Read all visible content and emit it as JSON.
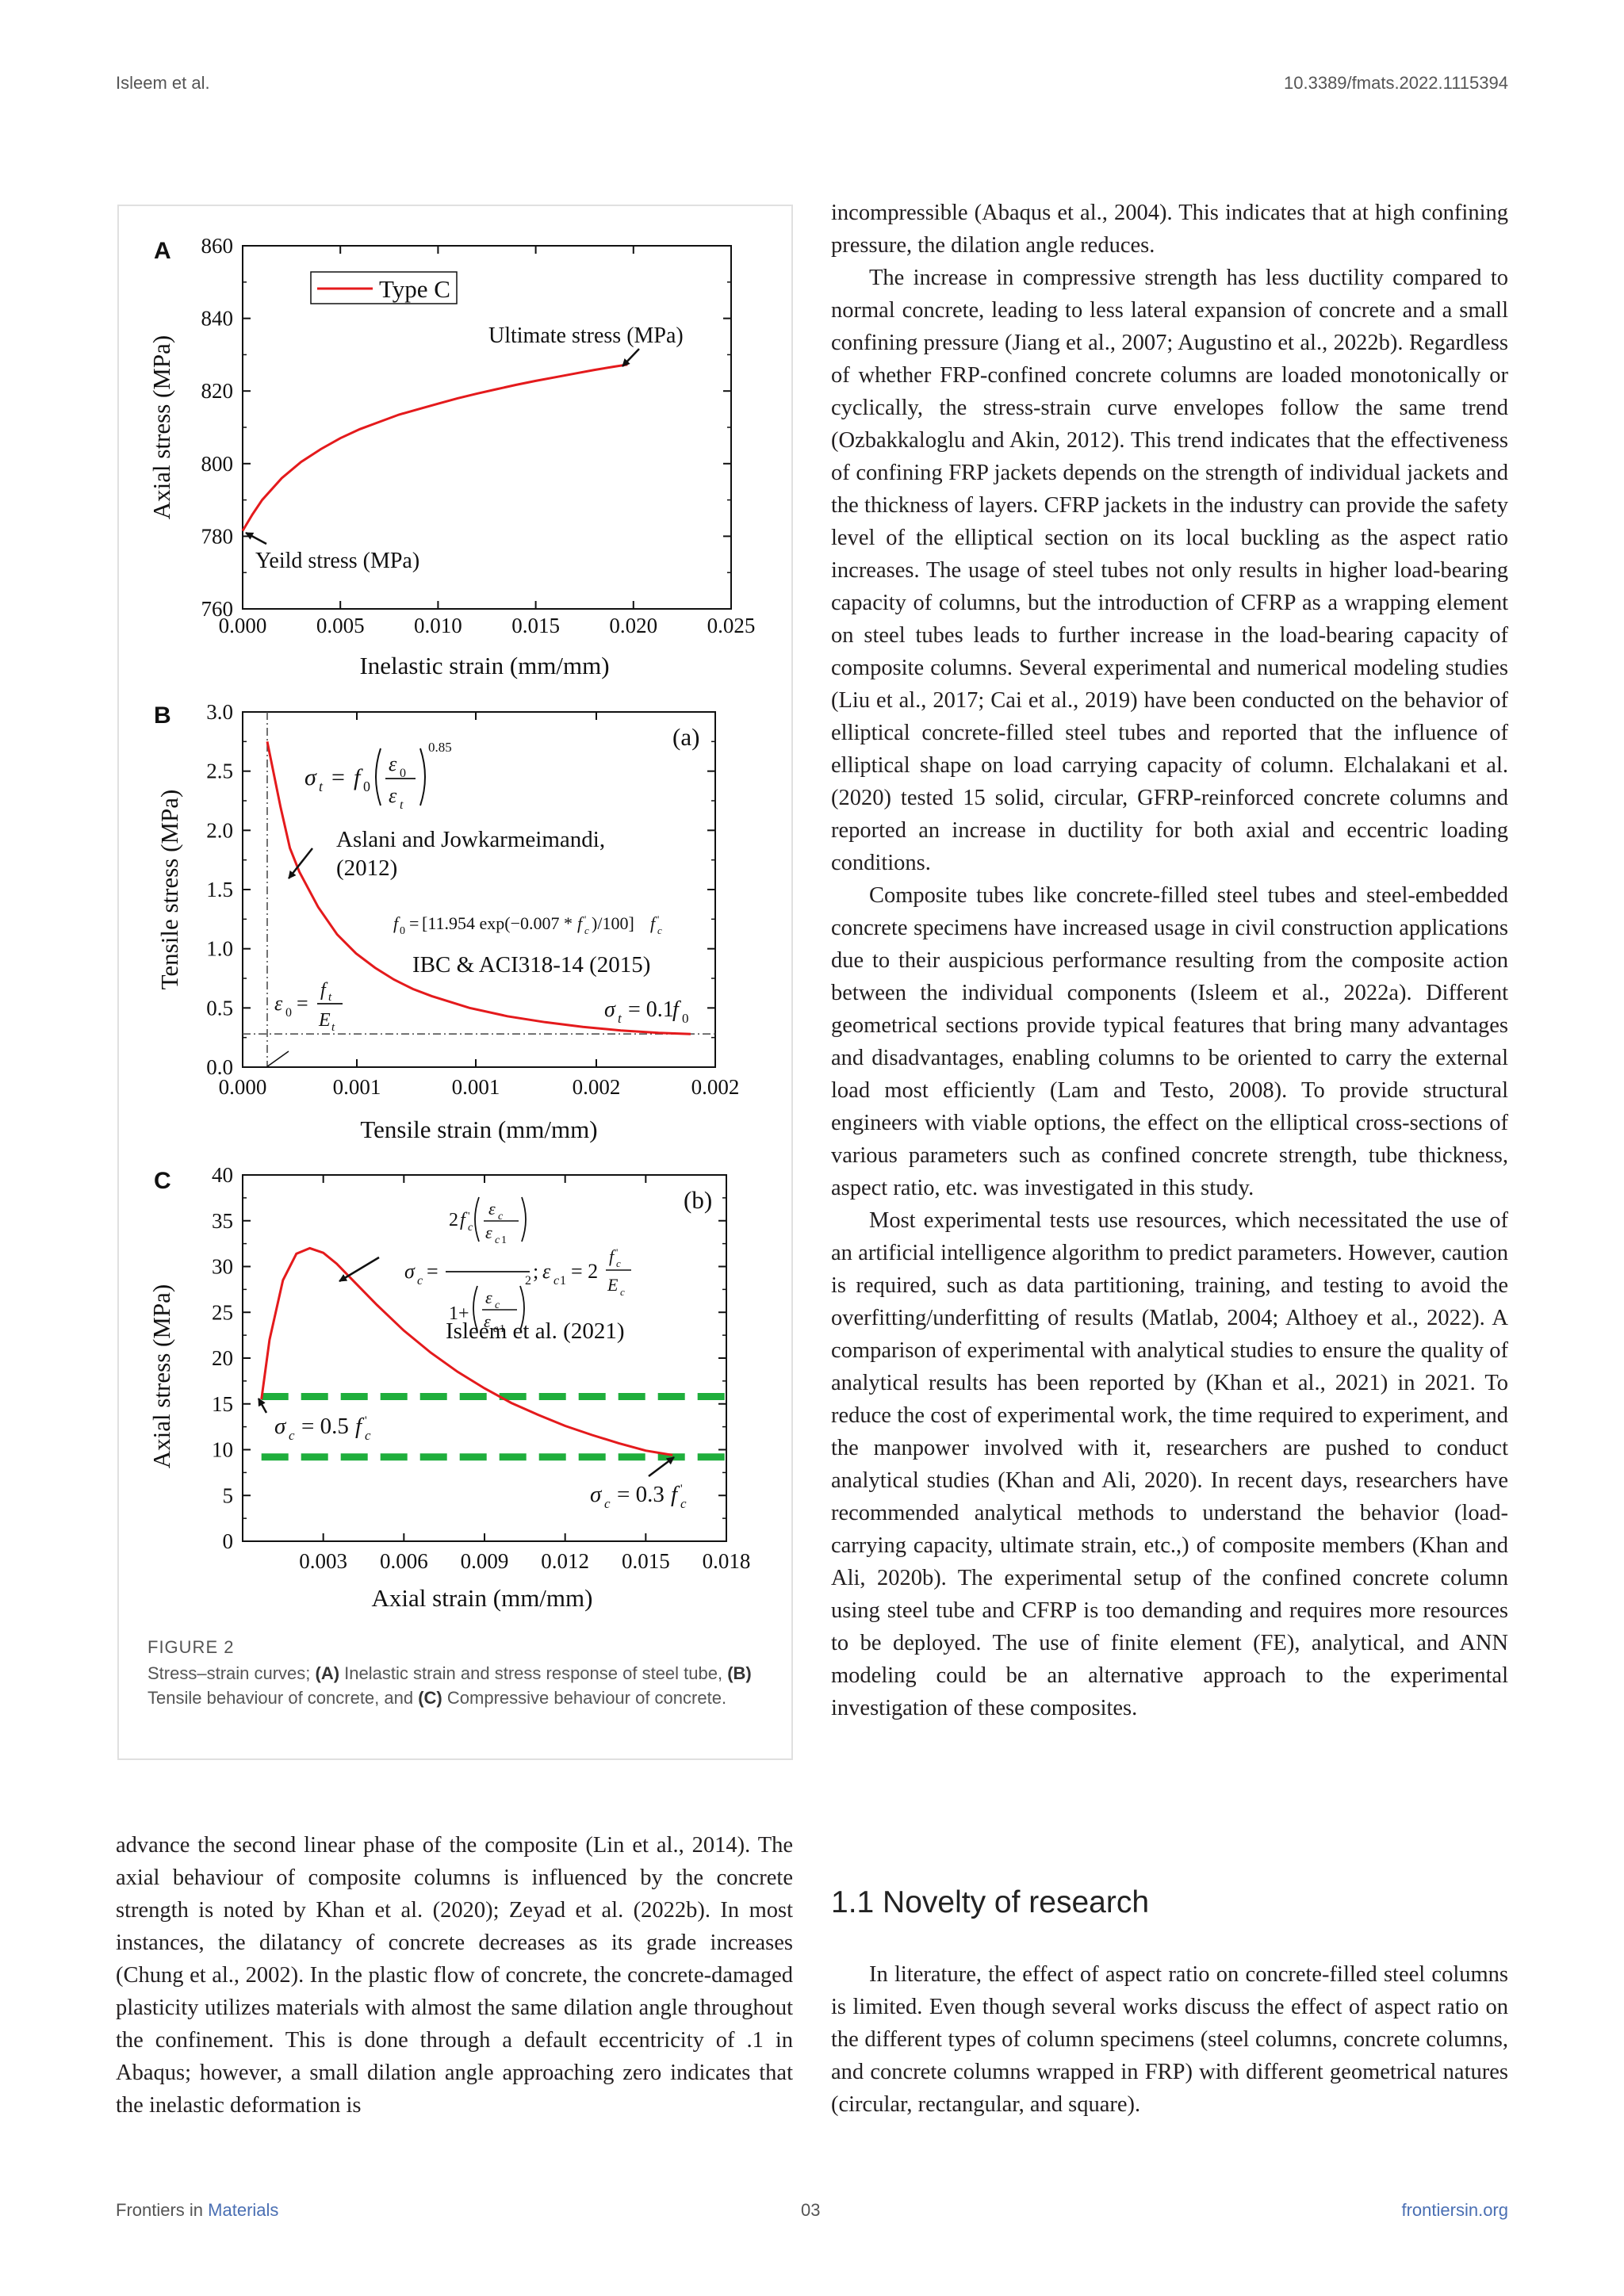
{
  "header": {
    "left": "Isleem et al.",
    "right": "10.3389/fmats.2022.1115394"
  },
  "footer": {
    "journal_prefix": "Frontiers in",
    "journal_name": "Materials",
    "page": "03",
    "site": "frontiersin.org"
  },
  "figure": {
    "label": "FIGURE 2",
    "caption_parts": [
      "Stress–strain curves; ",
      "(A)",
      " Inelastic strain and stress response of steel tube, ",
      "(B)",
      " Tensile behaviour of concrete, and ",
      "(C)",
      " Compressive behaviour of concrete."
    ]
  },
  "chart_data": [
    {
      "type": "line",
      "panel": "A",
      "xlabel": "Inelastic strain (mm/mm)",
      "ylabel": "Axial stress (MPa)",
      "xlim": [
        0.0,
        0.025
      ],
      "ylim": [
        760,
        860
      ],
      "xticks": [
        "0.000",
        "0.005",
        "0.010",
        "0.015",
        "0.020",
        "0.025"
      ],
      "yticks": [
        "760",
        "780",
        "800",
        "820",
        "840",
        "860"
      ],
      "legend": "top-left",
      "series": [
        {
          "name": "Type C",
          "color": "#e41a1c",
          "x": [
            0.0,
            0.0005,
            0.001,
            0.002,
            0.003,
            0.004,
            0.005,
            0.006,
            0.007,
            0.008,
            0.009,
            0.01,
            0.011,
            0.012,
            0.013,
            0.014,
            0.015,
            0.016,
            0.017,
            0.018,
            0.019,
            0.0197
          ],
          "y": [
            781.5,
            786,
            790,
            796,
            800.5,
            804,
            807,
            809.5,
            811.5,
            813.5,
            815,
            816.5,
            818,
            819.3,
            820.5,
            821.7,
            822.8,
            823.8,
            824.8,
            825.8,
            826.7,
            827.3
          ]
        }
      ],
      "annotations": [
        "Ultimate stress (MPa)",
        "Yeild stress (MPa)"
      ]
    },
    {
      "type": "line",
      "panel": "B",
      "xlabel": "Tensile strain (mm/mm)",
      "ylabel": "Tensile stress (MPa)",
      "xlim": [
        0.0,
        0.0025
      ],
      "ylim": [
        0.0,
        3.0
      ],
      "xticks": [
        "0.000",
        "0.001",
        "0.001",
        "0.002",
        "0.002"
      ],
      "yticks": [
        "0.0",
        "0.5",
        "1.0",
        "1.5",
        "2.0",
        "2.5",
        "3.0"
      ],
      "tag": "(a)",
      "series": [
        {
          "name": "",
          "color": "#e41a1c",
          "x": [
            0.00013,
            0.0002,
            0.00025,
            0.0003,
            0.0004,
            0.0005,
            0.0006,
            0.0007,
            0.0008,
            0.0009,
            0.001,
            0.0012,
            0.0014,
            0.0016,
            0.0018,
            0.002,
            0.0022,
            0.00237
          ],
          "y": [
            2.75,
            2.2,
            1.85,
            1.65,
            1.35,
            1.12,
            0.96,
            0.84,
            0.74,
            0.66,
            0.6,
            0.5,
            0.43,
            0.38,
            0.34,
            0.31,
            0.29,
            0.28
          ]
        }
      ],
      "reference_lines": {
        "vertical_x": 0.00013,
        "horizontal_y": 0.28
      },
      "annotations": [
        "Aslani and Jowkarmeimandi,",
        "(2012)",
        "IBC & ACI318-14 (2015)",
        "σ_t = f_0 (ε_0/ε_t)^0.85",
        "f_0 = [11.954 exp(−0.007*f'c)/100] f'c",
        "ε_0 = f_t/E_t",
        "σ_t = 0.1 f_0"
      ]
    },
    {
      "type": "line",
      "panel": "C",
      "xlabel": "Axial strain (mm/mm)",
      "ylabel": "Axial stress (MPa)",
      "xlim": [
        0.0,
        0.018
      ],
      "ylim": [
        0,
        40
      ],
      "xticks": [
        "0.003",
        "0.006",
        "0.009",
        "0.012",
        "0.015",
        "0.018"
      ],
      "yticks": [
        "0",
        "5",
        "10",
        "15",
        "20",
        "25",
        "30",
        "35",
        "40"
      ],
      "tag": "(b)",
      "series": [
        {
          "name": "",
          "color": "#e41a1c",
          "x": [
            0.0007,
            0.001,
            0.0015,
            0.002,
            0.0025,
            0.003,
            0.0035,
            0.004,
            0.005,
            0.006,
            0.007,
            0.008,
            0.009,
            0.01,
            0.011,
            0.012,
            0.013,
            0.014,
            0.015,
            0.016
          ],
          "y": [
            15.5,
            22,
            28.5,
            31.4,
            32,
            31.5,
            30.3,
            28.8,
            25.8,
            23.0,
            20.6,
            18.5,
            16.7,
            15.1,
            13.8,
            12.6,
            11.6,
            10.7,
            9.9,
            9.4
          ]
        },
        {
          "name": "",
          "color": "#1fae3c",
          "dashed": true,
          "x": [
            0.0007,
            0.018
          ],
          "y": [
            15.8,
            15.8
          ]
        },
        {
          "name": "",
          "color": "#1fae3c",
          "dashed": true,
          "x": [
            0.0007,
            0.018
          ],
          "y": [
            9.2,
            9.2
          ]
        }
      ],
      "annotations": [
        "Isleem et al. (2021)",
        "σ_c = 0.5 f'c",
        "σ_c = 0.3 f'c"
      ]
    }
  ],
  "left_column": {
    "paragraph": "advance the second linear phase of the composite (Lin et al., 2014). The axial behaviour of composite columns is influenced by the concrete strength is noted by Khan et al. (2020); Zeyad et al. (2022b). In most instances, the dilatancy of concrete decreases as its grade increases (Chung et al., 2002). In the plastic flow of concrete, the concrete-damaged plasticity utilizes materials with almost the same dilation angle throughout the confinement. This is done through a default eccentricity of .1 in Abaqus; however, a small dilation angle approaching zero indicates that the inelastic deformation is"
  },
  "right_column": {
    "p1": "incompressible (Abaqus et al., 2004). This indicates that at high confining pressure, the dilation angle reduces.",
    "p2": "The increase in compressive strength has less ductility compared to normal concrete, leading to less lateral expansion of concrete and a small confining pressure (Jiang et al., 2007; Augustino et al., 2022b). Regardless of whether FRP-confined concrete columns are loaded monotonically or cyclically, the stress-strain curve envelopes follow the same trend (Ozbakkaloglu and Akin, 2012). This trend indicates that the effectiveness of confining FRP jackets depends on the strength of individual jackets and the thickness of layers. CFRP jackets in the industry can provide the safety level of the elliptical section on its local buckling as the aspect ratio increases. The usage of steel tubes not only results in higher load-bearing capacity of columns, but the introduction of CFRP as a wrapping element on steel tubes leads to further increase in the load-bearing capacity of composite columns. Several experimental and numerical modeling studies (Liu et al., 2017; Cai et al., 2019) have been conducted on the behavior of elliptical concrete-filled steel tubes and reported that the influence of elliptical shape on load carrying capacity of column. Elchalakani et al. (2020) tested 15 solid, circular, GFRP-reinforced concrete columns and reported an increase in ductility for both axial and eccentric loading conditions.",
    "p3": "Composite tubes like concrete-filled steel tubes and steel-embedded concrete specimens have increased usage in civil construction applications due to their auspicious performance resulting from the composite action between the individual components (Isleem et al., 2022a). Different geometrical sections provide typical features that bring many advantages and disadvantages, enabling columns to be oriented to carry the external load most efficiently (Lam and Testo, 2008). To provide structural engineers with viable options, the effect on the elliptical cross-sections of various parameters such as confined concrete strength, tube thickness, aspect ratio, etc. was investigated in this study.",
    "p4": "Most experimental tests use resources, which necessitated the use of an artificial intelligence algorithm to predict parameters. However, caution is required, such as data partitioning, training, and testing to avoid the overfitting/underfitting of results (Matlab, 2004; Althoey et al., 2022). A comparison of experimental with analytical studies to ensure the quality of analytical results has been reported by (Khan et al., 2021) in 2021. To reduce the cost of experimental work, the time required to experiment, and the manpower involved with it, researchers are pushed to conduct analytical studies (Khan and Ali, 2020). In recent days, researchers have recommended analytical methods to understand the behavior (load-carrying capacity, ultimate strain, etc.,) of composite members (Khan and Ali, 2020b). The experimental setup of the confined concrete column using steel tube and CFRP is too demanding and requires more resources to be deployed. The use of finite element (FE), analytical, and ANN modeling could be an alternative approach to the experimental investigation of these composites.",
    "section_heading": "1.1 Novelty of research",
    "p5": "In literature, the effect of aspect ratio on concrete-filled steel columns is limited. Even though several works discuss the effect of aspect ratio on the different types of column specimens (steel columns, concrete columns, and concrete columns wrapped in FRP) with different geometrical natures (circular, rectangular, and square)."
  }
}
